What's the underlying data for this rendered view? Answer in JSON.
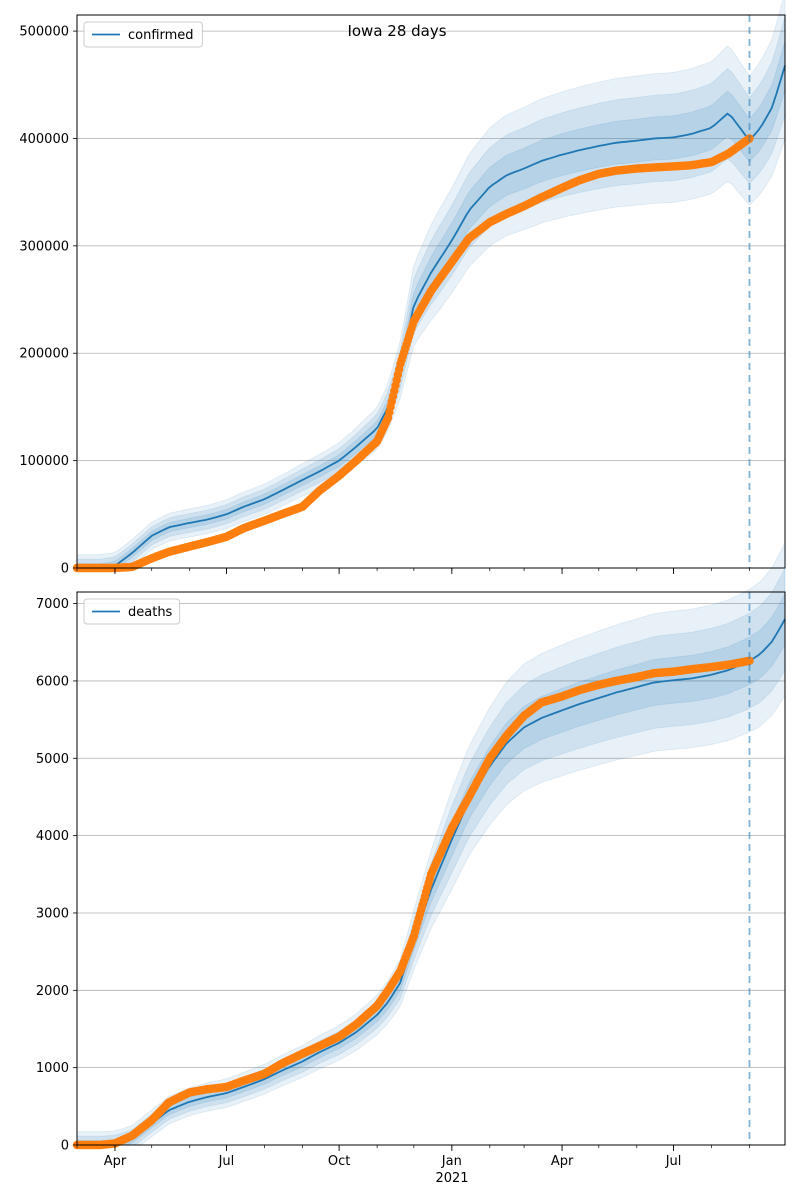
{
  "figure": {
    "title": "Iowa 28 days",
    "colors": {
      "model": "#1f77b4",
      "observed": "#ff7f0e",
      "band": "#1f77b4",
      "grid": "#b0b0b0",
      "forecast_line": "#1f77b4"
    }
  },
  "chart_data": [
    {
      "type": "line",
      "title": "Iowa 28 days",
      "xlabel": "",
      "ylabel": "",
      "x_range": [
        "2020-03-01",
        "2021-09-30"
      ],
      "ylim": [
        0,
        515000
      ],
      "yticks": [
        0,
        100000,
        200000,
        300000,
        400000,
        500000
      ],
      "ytick_labels": [
        "0",
        "100000",
        "200000",
        "300000",
        "400000",
        "500000"
      ],
      "xticks": [
        "2020-04-01",
        "2020-07-01",
        "2020-10-01",
        "2021-01-01",
        "2021-04-01",
        "2021-07-01"
      ],
      "xtick_labels": [],
      "grid": "horizontal",
      "legend": {
        "position": "top-left",
        "entries": [
          "confirmed"
        ]
      },
      "forecast_start": "2021-09-01",
      "series": [
        {
          "name": "confirmed",
          "style": "line",
          "x": [
            "2020-03-01",
            "2020-03-20",
            "2020-04-01",
            "2020-04-15",
            "2020-05-01",
            "2020-05-15",
            "2020-06-01",
            "2020-06-15",
            "2020-07-01",
            "2020-07-15",
            "2020-08-01",
            "2020-08-15",
            "2020-09-01",
            "2020-09-15",
            "2020-10-01",
            "2020-10-15",
            "2020-11-01",
            "2020-11-10",
            "2020-11-20",
            "2020-12-01",
            "2020-12-15",
            "2021-01-01",
            "2021-01-15",
            "2021-02-01",
            "2021-02-15",
            "2021-03-01",
            "2021-03-15",
            "2021-04-01",
            "2021-04-15",
            "2021-05-01",
            "2021-05-15",
            "2021-06-01",
            "2021-06-15",
            "2021-07-01",
            "2021-07-15",
            "2021-08-01",
            "2021-08-15",
            "2021-09-01",
            "2021-09-10",
            "2021-09-20",
            "2021-09-30"
          ],
          "y": [
            0,
            0,
            2000,
            14000,
            30000,
            38000,
            42000,
            45000,
            50000,
            57000,
            64000,
            72000,
            82000,
            90000,
            100000,
            113000,
            130000,
            150000,
            185000,
            245000,
            275000,
            305000,
            333000,
            355000,
            366000,
            372000,
            379000,
            385000,
            389000,
            393000,
            396000,
            398000,
            400000,
            401000,
            404000,
            410000,
            424000,
            398000,
            410000,
            430000,
            468000
          ]
        },
        {
          "name": "",
          "style": "markers",
          "x": [
            "2020-03-01",
            "2020-03-20",
            "2020-04-01",
            "2020-04-15",
            "2020-05-01",
            "2020-05-15",
            "2020-06-01",
            "2020-06-15",
            "2020-07-01",
            "2020-07-15",
            "2020-08-01",
            "2020-08-15",
            "2020-09-01",
            "2020-09-15",
            "2020-10-01",
            "2020-10-15",
            "2020-11-01",
            "2020-11-10",
            "2020-11-20",
            "2020-12-01",
            "2020-12-15",
            "2021-01-01",
            "2021-01-15",
            "2021-02-01",
            "2021-02-15",
            "2021-03-01",
            "2021-03-15",
            "2021-04-01",
            "2021-04-15",
            "2021-05-01",
            "2021-05-15",
            "2021-06-01",
            "2021-06-15",
            "2021-07-01",
            "2021-07-15",
            "2021-08-01",
            "2021-08-15",
            "2021-09-01"
          ],
          "y": [
            0,
            0,
            0,
            1000,
            9000,
            15000,
            20000,
            24000,
            29000,
            37000,
            44000,
            50000,
            57000,
            72000,
            86000,
            100000,
            118000,
            140000,
            190000,
            230000,
            258000,
            285000,
            307000,
            322000,
            330000,
            337000,
            345000,
            354000,
            361000,
            367000,
            370000,
            372000,
            373000,
            374000,
            375000,
            378000,
            386000,
            400000
          ]
        }
      ]
    },
    {
      "type": "line",
      "title": "",
      "xlabel": "2021",
      "ylabel": "",
      "x_range": [
        "2020-03-01",
        "2021-09-30"
      ],
      "ylim": [
        0,
        7150
      ],
      "yticks": [
        0,
        1000,
        2000,
        3000,
        4000,
        5000,
        6000,
        7000
      ],
      "ytick_labels": [
        "0",
        "1000",
        "2000",
        "3000",
        "4000",
        "5000",
        "6000",
        "7000"
      ],
      "xticks": [
        "2020-04-01",
        "2020-07-01",
        "2020-10-01",
        "2021-01-01",
        "2021-04-01",
        "2021-07-01"
      ],
      "xtick_labels": [
        "Apr",
        "Jul",
        "Oct",
        "Jan",
        "Apr",
        "Jul"
      ],
      "grid": "horizontal",
      "legend": {
        "position": "top-left",
        "entries": [
          "deaths"
        ]
      },
      "forecast_start": "2021-09-01",
      "series": [
        {
          "name": "deaths",
          "style": "line",
          "x": [
            "2020-03-01",
            "2020-03-20",
            "2020-04-01",
            "2020-04-15",
            "2020-05-01",
            "2020-05-15",
            "2020-06-01",
            "2020-06-15",
            "2020-07-01",
            "2020-07-15",
            "2020-08-01",
            "2020-08-15",
            "2020-09-01",
            "2020-09-15",
            "2020-10-01",
            "2020-10-15",
            "2020-11-01",
            "2020-11-10",
            "2020-11-20",
            "2020-12-01",
            "2020-12-15",
            "2021-01-01",
            "2021-01-15",
            "2021-02-01",
            "2021-02-15",
            "2021-03-01",
            "2021-03-15",
            "2021-04-01",
            "2021-04-15",
            "2021-05-01",
            "2021-05-15",
            "2021-06-01",
            "2021-06-15",
            "2021-07-01",
            "2021-07-15",
            "2021-08-01",
            "2021-08-15",
            "2021-09-01",
            "2021-09-10",
            "2021-09-20",
            "2021-09-30"
          ],
          "y": [
            0,
            0,
            10,
            80,
            280,
            450,
            560,
            620,
            670,
            750,
            850,
            960,
            1080,
            1200,
            1320,
            1460,
            1680,
            1850,
            2100,
            2650,
            3300,
            3950,
            4450,
            4900,
            5200,
            5400,
            5520,
            5620,
            5700,
            5780,
            5850,
            5920,
            5980,
            6010,
            6030,
            6080,
            6140,
            6260,
            6350,
            6520,
            6800
          ]
        },
        {
          "name": "",
          "style": "markers",
          "x": [
            "2020-03-01",
            "2020-03-20",
            "2020-04-01",
            "2020-04-15",
            "2020-05-01",
            "2020-05-15",
            "2020-06-01",
            "2020-06-15",
            "2020-07-01",
            "2020-07-15",
            "2020-08-01",
            "2020-08-15",
            "2020-09-01",
            "2020-09-15",
            "2020-10-01",
            "2020-10-15",
            "2020-11-01",
            "2020-11-10",
            "2020-11-20",
            "2020-12-01",
            "2020-12-15",
            "2021-01-01",
            "2021-01-15",
            "2021-02-01",
            "2021-02-15",
            "2021-03-01",
            "2021-03-15",
            "2021-04-01",
            "2021-04-15",
            "2021-05-01",
            "2021-05-15",
            "2021-06-01",
            "2021-06-15",
            "2021-07-01",
            "2021-07-15",
            "2021-08-01",
            "2021-08-15",
            "2021-09-01"
          ],
          "y": [
            0,
            0,
            20,
            120,
            320,
            550,
            680,
            720,
            750,
            830,
            920,
            1050,
            1180,
            1280,
            1400,
            1560,
            1800,
            2000,
            2250,
            2700,
            3500,
            4100,
            4500,
            5000,
            5300,
            5550,
            5720,
            5800,
            5880,
            5950,
            6000,
            6050,
            6100,
            6120,
            6150,
            6180,
            6210,
            6260
          ]
        }
      ]
    }
  ]
}
